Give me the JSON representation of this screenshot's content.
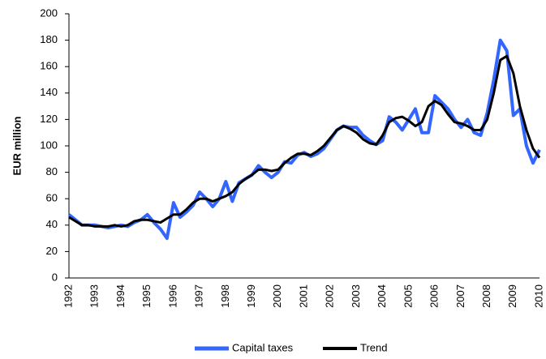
{
  "chart_data": {
    "type": "line",
    "ylabel": "EUR million",
    "categories": [
      "1992",
      null,
      null,
      null,
      "1993",
      null,
      null,
      null,
      "1994",
      null,
      null,
      null,
      "1995",
      null,
      null,
      null,
      "1996",
      null,
      null,
      null,
      "1997",
      null,
      null,
      null,
      "1998",
      null,
      null,
      null,
      "1999",
      null,
      null,
      null,
      "2000",
      null,
      null,
      null,
      "2001",
      null,
      null,
      null,
      "2002",
      null,
      null,
      null,
      "2003",
      null,
      null,
      null,
      "2004",
      null,
      null,
      null,
      "2005",
      null,
      null,
      null,
      "2006",
      null,
      null,
      null,
      "2007",
      null,
      null,
      null,
      "2008",
      null,
      null,
      null,
      "2009",
      null,
      null,
      null,
      "2010"
    ],
    "series": [
      {
        "name": "Capital taxes",
        "color": "#3366ff",
        "width": 4,
        "values": [
          48,
          44,
          40,
          40,
          40,
          39,
          38,
          39,
          40,
          39,
          42,
          44,
          48,
          42,
          37,
          30,
          57,
          46,
          50,
          55,
          65,
          60,
          54,
          60,
          73,
          58,
          72,
          75,
          78,
          85,
          80,
          76,
          80,
          88,
          87,
          93,
          95,
          92,
          94,
          98,
          105,
          112,
          115,
          114,
          114,
          108,
          104,
          101,
          104,
          122,
          118,
          112,
          120,
          128,
          110,
          110,
          138,
          133,
          128,
          120,
          114,
          120,
          110,
          108,
          125,
          150,
          180,
          172,
          123,
          128,
          100,
          87,
          97
        ]
      },
      {
        "name": "Trend",
        "color": "#000000",
        "width": 3,
        "values": [
          46,
          43,
          40,
          40,
          39,
          39,
          39,
          40,
          39,
          40,
          43,
          44,
          44,
          43,
          42,
          45,
          48,
          48,
          52,
          57,
          60,
          60,
          58,
          60,
          62,
          65,
          71,
          75,
          78,
          82,
          82,
          81,
          82,
          87,
          91,
          94,
          94,
          93,
          96,
          100,
          106,
          112,
          115,
          113,
          110,
          105,
          102,
          101,
          108,
          118,
          121,
          122,
          119,
          115,
          118,
          130,
          134,
          131,
          124,
          118,
          117,
          115,
          112,
          112,
          120,
          140,
          165,
          168,
          155,
          130,
          112,
          98,
          91
        ]
      }
    ],
    "ylim": [
      0,
      200
    ],
    "yticks": [
      0,
      20,
      40,
      60,
      80,
      100,
      120,
      140,
      160,
      180,
      200
    ],
    "grid": false,
    "legend": "bottom"
  }
}
